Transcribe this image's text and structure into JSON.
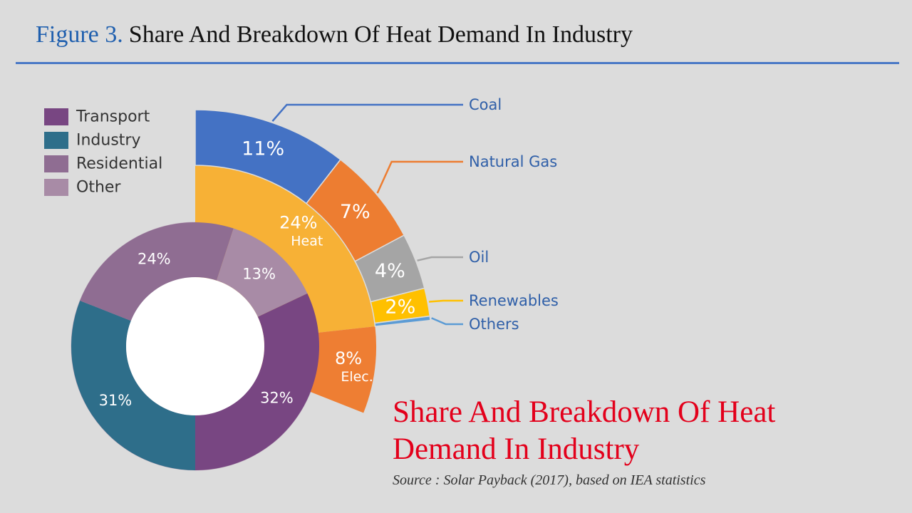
{
  "header": {
    "figure_number": "Figure 3.",
    "title": "Share And Breakdown Of Heat Demand In Industry"
  },
  "overlay": {
    "title_line1": "Share And Breakdown Of Heat",
    "title_line2": "Demand In Industry",
    "source": "Source : Solar Payback (2017), based on IEA statistics"
  },
  "colors": {
    "accent_blue": "#1f5fae",
    "overlay_red": "#e3001b",
    "background": "#dcdcdc"
  },
  "chart_data": [
    {
      "type": "pie",
      "variant": "donut",
      "legend_position": "top-left",
      "legend": [
        {
          "label": "Transport",
          "color": "#784682"
        },
        {
          "label": "Industry",
          "color": "#2e6e8a"
        },
        {
          "label": "Residential",
          "color": "#8f6d92"
        },
        {
          "label": "Other",
          "color": "#a88ba6"
        }
      ],
      "slices": [
        {
          "category": "Industry",
          "value": 31,
          "label": "31%",
          "color": "#2e6e8a"
        },
        {
          "category": "Residential",
          "value": 24,
          "label": "24%",
          "color": "#8f6d92"
        },
        {
          "category": "Other",
          "value": 13,
          "label": "13%",
          "color": "#a88ba6"
        },
        {
          "category": "Transport",
          "value": 32,
          "label": "32%",
          "color": "#784682"
        }
      ]
    },
    {
      "type": "pie",
      "variant": "sunburst-breakdown",
      "parent": "Industry",
      "inner_ring": [
        {
          "name": "Heat",
          "value": 24,
          "label": "24%",
          "color": "#f7b136"
        },
        {
          "name": "Elec.",
          "value": 8,
          "label": "8%",
          "color": "#ee7e33"
        }
      ],
      "outer_ring": [
        {
          "name": "Coal",
          "value": 11,
          "label": "11%",
          "color": "#4472c4"
        },
        {
          "name": "Natural Gas",
          "value": 7,
          "label": "7%",
          "color": "#ed7d31"
        },
        {
          "name": "Oil",
          "value": 4,
          "label": "4%",
          "color": "#a5a5a5"
        },
        {
          "name": "Renewables",
          "value": 2,
          "label": "2%",
          "color": "#ffc000"
        },
        {
          "name": "Others",
          "value": 0.3,
          "label": "",
          "color": "#5b9bd5"
        }
      ]
    }
  ]
}
